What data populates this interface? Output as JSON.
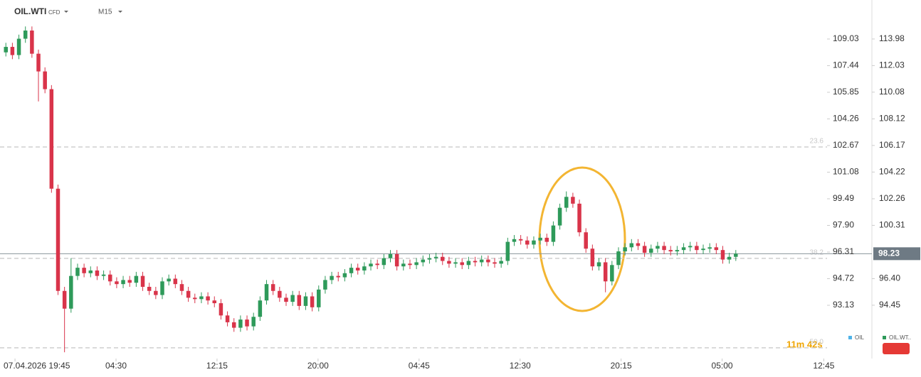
{
  "chart_data": {
    "type": "candlestick",
    "symbol": "OIL.WTI",
    "instrument_type": "CFD",
    "timeframe": "M15",
    "countdown": "11m 42s",
    "current_price": 98.23,
    "xlim": [
      -0.9,
      126
    ],
    "xticks": [
      {
        "value": 1.4,
        "label": "07.04.2026 19:45"
      },
      {
        "value": 16.9,
        "label": "04:30"
      },
      {
        "value": 32.4,
        "label": "12:15"
      },
      {
        "value": 47.9,
        "label": "20:00"
      },
      {
        "value": 63.4,
        "label": "04:45"
      },
      {
        "value": 78.9,
        "label": "12:30"
      },
      {
        "value": 94.4,
        "label": "20:15"
      },
      {
        "value": 109.9,
        "label": "05:00"
      },
      {
        "value": 125.5,
        "label": "12:45"
      }
    ],
    "ylim": [
      89.95,
      111.36
    ],
    "yticks": [
      109.03,
      107.44,
      105.85,
      104.26,
      102.67,
      101.08,
      99.49,
      {
        "value": 97.9,
        "label": "97.90"
      },
      96.31,
      94.72,
      93.13
    ],
    "y2lim": [
      90.54,
      116.84
    ],
    "y2ticks": [
      113.98,
      112.03,
      110.08,
      108.12,
      106.17,
      104.22,
      102.26,
      100.31,
      {
        "value": 96.4,
        "label": "96.40"
      },
      94.45
    ],
    "fib_levels": [
      {
        "name": "23.6",
        "price": 106.06
      },
      {
        "name": "38.2",
        "price": 97.89
      },
      {
        "name": "50.0",
        "price": 91.33
      }
    ],
    "legend": [
      {
        "name": "OIL",
        "color": "#4fb3e8"
      },
      {
        "name": "OIL.WT..",
        "color": "#2e9a5a"
      }
    ],
    "up_color": "#2e9a5a",
    "down_color": "#d9344a",
    "series": [
      {
        "name": "OIL.WTI",
        "axis": "y2",
        "open": [
          113.0,
          113.4,
          112.8,
          114.0,
          114.6,
          112.9,
          111.6,
          110.3,
          103.0,
          95.5,
          94.2,
          96.6,
          97.2,
          96.8,
          97.0,
          96.6,
          96.7,
          96.2,
          96.0,
          96.3,
          96.1,
          96.6,
          95.8,
          95.5,
          95.2,
          96.2,
          96.4,
          96.0,
          95.5,
          95.0,
          94.9,
          95.1,
          94.8,
          94.6,
          93.7,
          93.2,
          92.8,
          93.4,
          92.9,
          93.6,
          94.8,
          96.0,
          95.5,
          95.0,
          94.7,
          95.2,
          94.4,
          95.1,
          94.3,
          95.6,
          96.3,
          96.6,
          96.5,
          96.8,
          97.2,
          97.0,
          97.3,
          97.5,
          97.4,
          97.9,
          98.2,
          97.3,
          97.5,
          97.4,
          97.6,
          97.8,
          97.9,
          98.0,
          97.7,
          97.5,
          97.6,
          97.4,
          97.7,
          97.6,
          97.8,
          97.6,
          97.5,
          97.7,
          99.1,
          99.3,
          99.2,
          98.9,
          99.2,
          99.4,
          99.1,
          100.3,
          101.6,
          102.4,
          101.9,
          99.8,
          98.6,
          97.3,
          97.6,
          96.2,
          97.4,
          98.4,
          98.7,
          99.0,
          98.8,
          98.3,
          98.6,
          98.8,
          98.5,
          98.4,
          98.5,
          98.7,
          98.8,
          98.5,
          98.6,
          98.7,
          98.5,
          97.8,
          98.0
        ],
        "high": [
          113.7,
          113.7,
          114.3,
          114.9,
          114.9,
          113.2,
          111.9,
          110.6,
          103.3,
          95.8,
          97.9,
          97.5,
          97.5,
          97.3,
          97.3,
          97.0,
          97.0,
          96.5,
          96.6,
          96.6,
          96.9,
          96.9,
          96.1,
          95.8,
          96.5,
          96.7,
          96.7,
          96.3,
          95.8,
          95.3,
          95.4,
          95.4,
          95.1,
          94.9,
          94.0,
          93.5,
          93.7,
          93.7,
          93.9,
          95.1,
          96.3,
          96.3,
          95.8,
          95.3,
          95.5,
          95.5,
          95.4,
          95.4,
          95.9,
          96.6,
          96.9,
          96.9,
          97.1,
          97.5,
          97.5,
          97.6,
          97.8,
          97.8,
          98.2,
          98.5,
          98.5,
          97.8,
          97.8,
          97.9,
          98.1,
          98.2,
          98.3,
          98.3,
          98.0,
          97.9,
          97.9,
          98.0,
          98.0,
          98.1,
          98.1,
          97.9,
          98.0,
          99.4,
          99.6,
          99.6,
          99.5,
          99.5,
          99.7,
          99.7,
          100.6,
          101.9,
          102.8,
          102.7,
          102.2,
          100.1,
          98.9,
          97.9,
          97.9,
          97.7,
          98.7,
          99.0,
          99.3,
          99.3,
          99.1,
          98.9,
          99.1,
          99.1,
          98.8,
          98.8,
          99.0,
          99.1,
          99.1,
          98.9,
          99.0,
          99.0,
          98.8,
          98.3,
          98.5
        ],
        "low": [
          112.7,
          112.5,
          112.5,
          113.7,
          112.6,
          109.4,
          110.0,
          102.7,
          95.2,
          91.0,
          93.9,
          96.3,
          96.5,
          96.5,
          96.3,
          96.3,
          95.9,
          95.7,
          95.7,
          95.8,
          95.8,
          95.5,
          95.2,
          94.9,
          94.9,
          95.9,
          95.7,
          95.2,
          94.7,
          94.6,
          94.6,
          94.5,
          94.3,
          93.4,
          92.9,
          92.5,
          92.5,
          92.6,
          92.6,
          93.3,
          94.5,
          95.2,
          94.7,
          94.4,
          94.4,
          94.1,
          94.1,
          94.0,
          94.0,
          95.3,
          96.0,
          96.2,
          96.2,
          96.5,
          96.7,
          96.7,
          97.0,
          97.1,
          97.1,
          97.6,
          97.0,
          97.0,
          97.1,
          97.1,
          97.3,
          97.5,
          97.6,
          97.4,
          97.2,
          97.2,
          97.1,
          97.1,
          97.3,
          97.3,
          97.3,
          97.2,
          97.2,
          97.4,
          98.8,
          98.9,
          98.6,
          98.6,
          98.9,
          98.8,
          98.8,
          100.0,
          101.3,
          101.6,
          99.5,
          98.3,
          97.0,
          97.0,
          95.4,
          95.9,
          97.1,
          98.1,
          98.4,
          98.5,
          98.0,
          98.0,
          98.3,
          98.2,
          98.1,
          98.1,
          98.2,
          98.4,
          98.2,
          98.2,
          98.3,
          98.2,
          97.5,
          97.5,
          97.7
        ],
        "close": [
          113.4,
          112.8,
          114.0,
          114.6,
          112.9,
          111.6,
          110.3,
          103.0,
          95.5,
          94.2,
          96.6,
          97.2,
          96.8,
          97.0,
          96.6,
          96.7,
          96.2,
          96.0,
          96.3,
          96.1,
          96.6,
          95.8,
          95.5,
          95.2,
          96.2,
          96.4,
          96.0,
          95.5,
          95.0,
          94.9,
          95.1,
          94.8,
          94.6,
          93.7,
          93.2,
          92.8,
          93.4,
          92.9,
          93.6,
          94.8,
          96.0,
          95.5,
          95.0,
          94.7,
          95.2,
          94.4,
          95.1,
          94.3,
          95.6,
          96.3,
          96.6,
          96.5,
          96.8,
          97.2,
          97.0,
          97.3,
          97.5,
          97.4,
          97.9,
          98.2,
          97.3,
          97.5,
          97.4,
          97.6,
          97.8,
          97.9,
          98.0,
          97.7,
          97.5,
          97.6,
          97.4,
          97.7,
          97.6,
          97.8,
          97.6,
          97.5,
          97.7,
          99.1,
          99.3,
          99.2,
          98.9,
          99.2,
          99.4,
          99.1,
          100.3,
          101.6,
          102.4,
          101.9,
          99.8,
          98.6,
          97.3,
          97.6,
          96.2,
          97.4,
          98.4,
          98.7,
          99.0,
          98.8,
          98.3,
          98.6,
          98.8,
          98.5,
          98.4,
          98.5,
          98.7,
          98.8,
          98.5,
          98.6,
          98.7,
          98.5,
          97.8,
          98.0,
          98.23
        ]
      }
    ]
  }
}
